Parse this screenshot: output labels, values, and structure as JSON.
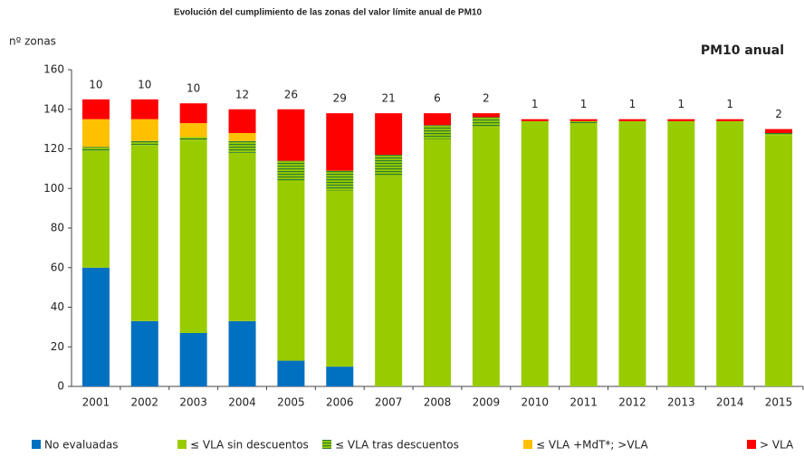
{
  "chart_data": {
    "type": "stacked_bar",
    "title": "Evolución del cumplimiento de las zonas del valor límite anual de PM10",
    "subtitle": "PM10 anual",
    "y_label": "nº zonas",
    "categories": [
      "2001",
      "2002",
      "2003",
      "2004",
      "2005",
      "2006",
      "2007",
      "2008",
      "2009",
      "2010",
      "2011",
      "2012",
      "2013",
      "2014",
      "2015"
    ],
    "series": [
      {
        "name": "No evaluadas",
        "color": "#0070c0",
        "values": [
          60,
          33,
          27,
          33,
          13,
          10,
          0,
          0,
          0,
          0,
          0,
          0,
          0,
          0,
          0
        ]
      },
      {
        "name": "≤ VLA sin descuentos",
        "color": "#99cc00",
        "values": [
          59,
          89,
          97,
          85,
          91,
          89,
          106,
          125,
          131,
          134,
          133,
          134,
          134,
          134,
          127
        ]
      },
      {
        "name": "≤ VLA tras descuentos",
        "color": "#99cc00",
        "pattern": "stripes",
        "values": [
          2,
          2,
          2,
          6,
          10,
          10,
          11,
          7,
          5,
          0,
          1,
          0,
          0,
          0,
          1
        ]
      },
      {
        "name": "≤ VLA +MdT*; >VLA",
        "color": "#ffc000",
        "values": [
          14,
          11,
          7,
          4,
          0,
          0,
          0,
          0,
          0,
          0,
          0,
          0,
          0,
          0,
          0
        ]
      },
      {
        "name": "> VLA",
        "color": "#ff0000",
        "labels_on_top": true,
        "values": [
          10,
          10,
          10,
          12,
          26,
          29,
          21,
          6,
          2,
          1,
          1,
          1,
          1,
          1,
          2
        ]
      }
    ],
    "ylim": [
      0,
      160
    ],
    "yticks": [
      0,
      20,
      40,
      60,
      80,
      100,
      120,
      140,
      160
    ],
    "grid": false,
    "legend": "bottom"
  }
}
